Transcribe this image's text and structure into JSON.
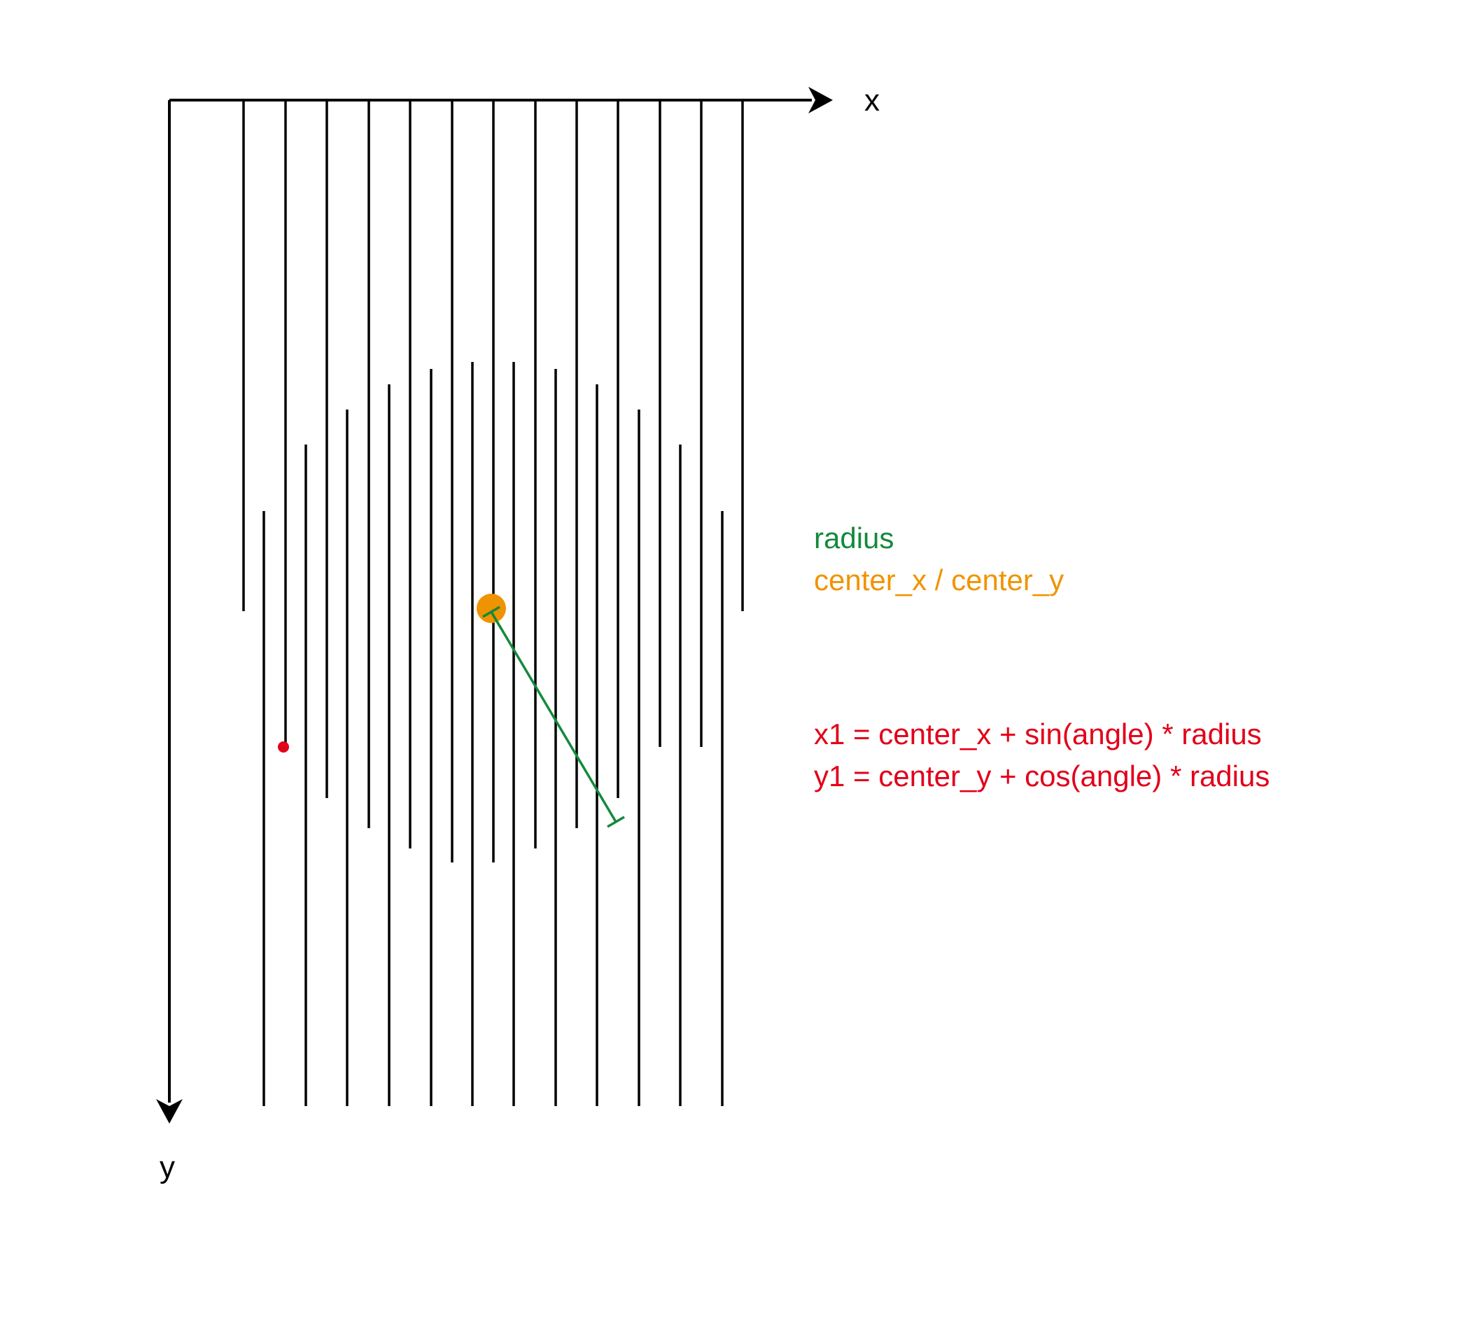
{
  "axes": {
    "x_label": "x",
    "y_label": "y"
  },
  "legend": {
    "radius_label": "radius",
    "center_label": "center_x / center_y"
  },
  "formulas": {
    "x1": "x1 = center_x + sin(angle) * radius",
    "y1": "y1 = center_y + cos(angle) * radius"
  },
  "colors": {
    "axis": "#000000",
    "lines": "#000000",
    "radius": "#138a3c",
    "center": "#ef9400",
    "point": "#e2001a",
    "formula": "#e2001a"
  }
}
